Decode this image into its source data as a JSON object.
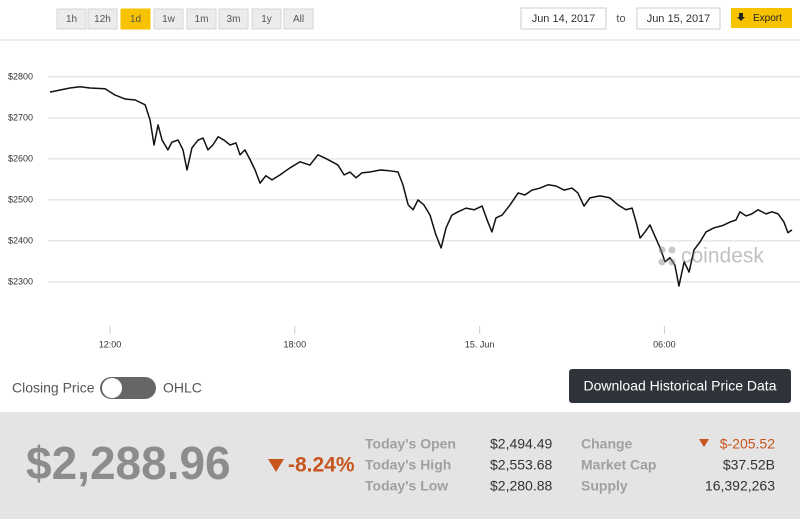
{
  "controls": {
    "ranges": [
      "1h",
      "12h",
      "1d",
      "1w",
      "1m",
      "3m",
      "1y",
      "All"
    ],
    "active_range": 2,
    "date_from": "Jun 14, 2017",
    "to": "to",
    "date_to": "Jun 15, 2017",
    "export": "Export"
  },
  "chart_data": {
    "type": "line",
    "color": "#111111",
    "x": [
      10.05,
      10.38,
      10.7,
      11.03,
      11.35,
      11.84,
      12.16,
      12.49,
      12.81,
      13.14,
      13.3,
      13.43,
      13.56,
      13.69,
      13.88,
      14.01,
      14.21,
      14.37,
      14.5,
      14.66,
      14.86,
      15.02,
      15.18,
      15.34,
      15.51,
      15.7,
      15.9,
      16.09,
      16.22,
      16.38,
      16.55,
      16.71,
      16.87,
      17.06,
      17.26,
      17.52,
      17.84,
      18.17,
      18.49,
      18.75,
      18.98,
      19.21,
      19.4,
      19.6,
      19.79,
      19.99,
      20.18,
      20.44,
      20.77,
      21.09,
      21.35,
      21.51,
      21.68,
      21.84,
      22.0,
      22.19,
      22.39,
      22.58,
      22.75,
      22.91,
      23.1,
      23.3,
      23.56,
      23.82,
      24.08,
      24.27,
      24.4,
      24.53,
      24.73,
      24.99,
      25.25,
      25.47,
      25.7,
      25.96,
      26.22,
      26.48,
      26.74,
      27.0,
      27.19,
      27.39,
      27.58,
      27.91,
      28.23,
      28.49,
      28.75,
      28.95,
      29.08,
      29.21,
      29.37,
      29.53,
      29.69,
      29.86,
      30.02,
      30.18,
      30.34,
      30.47,
      30.64,
      30.8,
      30.96,
      31.16,
      31.35,
      31.61,
      31.87,
      32.13,
      32.32,
      32.45,
      32.65,
      32.84,
      33.04,
      33.3,
      33.49,
      33.69,
      33.88,
      34.01,
      34.14
    ],
    "values": [
      2763,
      2768,
      2773,
      2776,
      2773,
      2771,
      2756,
      2746,
      2744,
      2732,
      2695,
      2634,
      2683,
      2646,
      2622,
      2641,
      2646,
      2622,
      2573,
      2627,
      2646,
      2651,
      2622,
      2634,
      2654,
      2646,
      2634,
      2639,
      2610,
      2622,
      2598,
      2573,
      2541,
      2559,
      2549,
      2561,
      2578,
      2593,
      2585,
      2610,
      2602,
      2593,
      2585,
      2561,
      2568,
      2554,
      2566,
      2568,
      2573,
      2571,
      2568,
      2537,
      2488,
      2476,
      2500,
      2488,
      2463,
      2415,
      2383,
      2432,
      2463,
      2471,
      2480,
      2476,
      2485,
      2446,
      2422,
      2456,
      2463,
      2488,
      2517,
      2512,
      2524,
      2529,
      2537,
      2534,
      2524,
      2529,
      2517,
      2485,
      2505,
      2510,
      2505,
      2488,
      2476,
      2480,
      2446,
      2407,
      2422,
      2439,
      2412,
      2383,
      2349,
      2359,
      2341,
      2290,
      2349,
      2324,
      2378,
      2398,
      2422,
      2432,
      2437,
      2446,
      2451,
      2471,
      2461,
      2466,
      2476,
      2466,
      2471,
      2466,
      2446,
      2420,
      2427
    ],
    "xlim": [
      10,
      34.2
    ],
    "xticks": [
      {
        "value": 12,
        "label": "12:00"
      },
      {
        "value": 18,
        "label": "18:00"
      },
      {
        "value": 24,
        "label": "15. Jun"
      },
      {
        "value": 30,
        "label": "06:00"
      }
    ],
    "ylim": [
      2195,
      2890
    ],
    "yticks": [
      {
        "value": 2300,
        "label": "$2300"
      },
      {
        "value": 2400,
        "label": "$2400"
      },
      {
        "value": 2500,
        "label": "$2500"
      },
      {
        "value": 2600,
        "label": "$2600"
      },
      {
        "value": 2700,
        "label": "$2700"
      },
      {
        "value": 2800,
        "label": "$2800"
      }
    ],
    "grid": true
  },
  "watermark": "coindesk",
  "toggle": {
    "left": "Closing Price",
    "right": "OHLC"
  },
  "download": "Download Historical Price Data",
  "summary": {
    "price": "$2,288.96",
    "change_percent": "-8.24%",
    "stats": [
      {
        "label": "Today's Open",
        "value": "$2,494.49",
        "label2": "Change",
        "value2": "$-205.52"
      },
      {
        "label": "Today's High",
        "value": "$2,553.68",
        "label2": "Market Cap",
        "value2": "$37.52B"
      },
      {
        "label": "Today's Low",
        "value": "$2,280.88",
        "label2": "Supply",
        "value2": "16,392,263"
      }
    ]
  }
}
